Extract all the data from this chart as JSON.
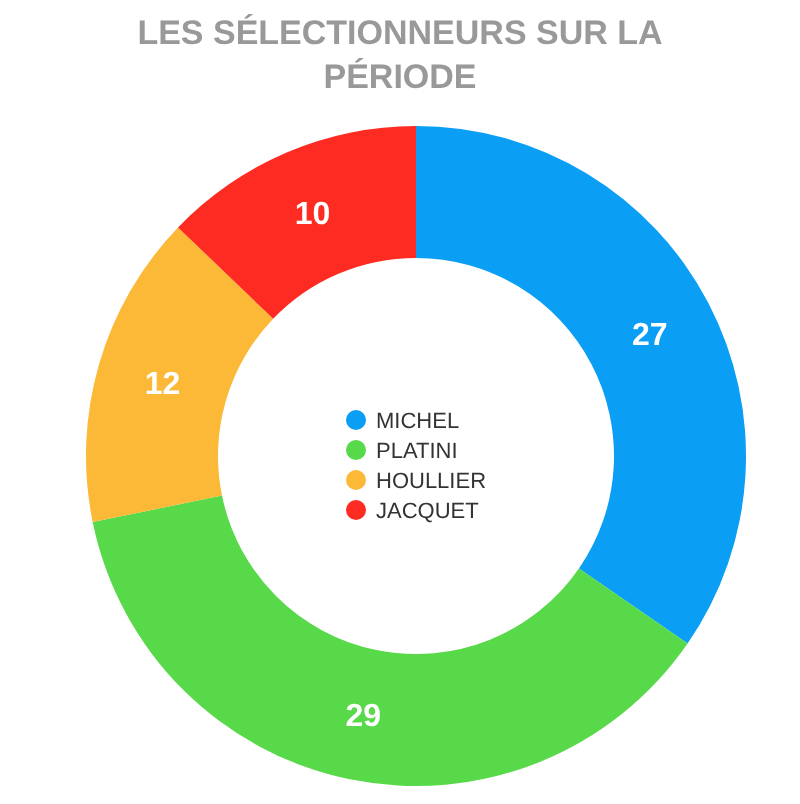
{
  "chart_data": {
    "type": "donut",
    "title": "LES SÉLECTIONNEURS SUR LA PÉRIODE",
    "categories": [
      "MICHEL",
      "PLATINI",
      "HOULLIER",
      "JACQUET"
    ],
    "values": [
      27,
      29,
      12,
      10
    ],
    "colors": [
      "#0a9ef5",
      "#57d94a",
      "#fbb937",
      "#fd2b22"
    ],
    "data_labels": true,
    "legend": "center"
  }
}
